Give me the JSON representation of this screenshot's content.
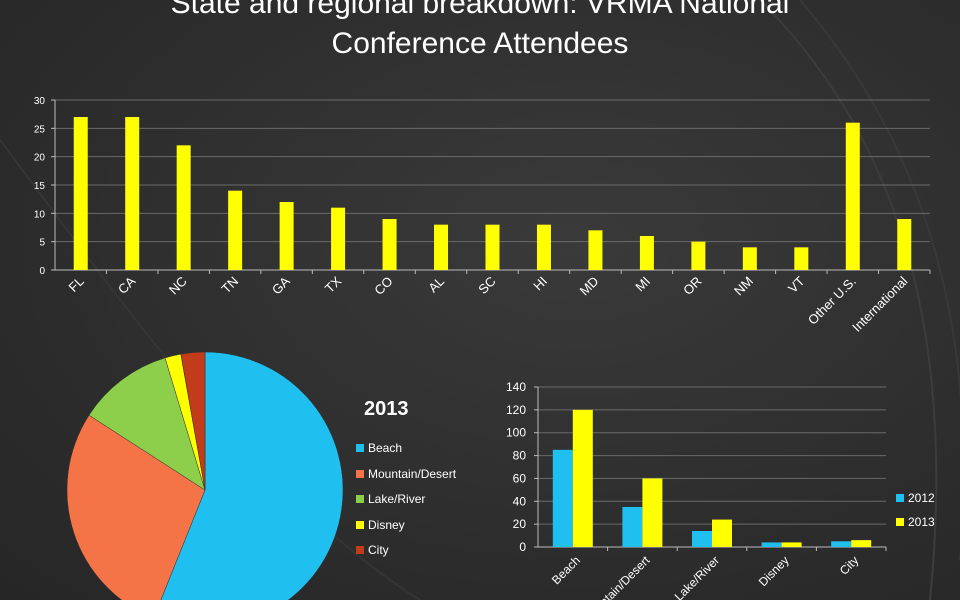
{
  "page": {
    "title_lines": [
      "State and regional breakdown: VRMA National",
      "Conference Attendees"
    ]
  },
  "colors": {
    "background": "#2f2f2f",
    "yellow": "#ffff00",
    "blue": "#1fbfef",
    "orange": "#f47447",
    "green": "#8dcf4b",
    "red": "#c23b1a"
  },
  "chart_data": [
    {
      "type": "bar",
      "categories": [
        "FL",
        "CA",
        "NC",
        "TN",
        "GA",
        "TX",
        "CO",
        "AL",
        "SC",
        "HI",
        "MD",
        "MI",
        "OR",
        "NM",
        "VT",
        "Other U.S.",
        "International"
      ],
      "values": [
        27,
        27,
        22,
        14,
        12,
        11,
        9,
        8,
        8,
        8,
        7,
        6,
        5,
        4,
        4,
        26,
        9
      ],
      "title": "",
      "xlabel": "",
      "ylabel": "",
      "ylim": [
        0,
        30
      ],
      "yticks": [
        0,
        5,
        10,
        15,
        20,
        25,
        30
      ],
      "grid": true,
      "bar_color": "#ffff00"
    },
    {
      "type": "pie",
      "title": "2013",
      "labels": [
        "Beach",
        "Mountain/Desert",
        "Lake/River",
        "Disney",
        "City"
      ],
      "values": [
        120,
        60,
        24,
        4,
        6
      ],
      "colors": [
        "#1fbfef",
        "#f47447",
        "#8dcf4b",
        "#ffff00",
        "#c23b1a"
      ],
      "legend": "right"
    },
    {
      "type": "bar",
      "categories": [
        "Beach",
        "Mountain/Desert",
        "Lake/River",
        "Disney",
        "City"
      ],
      "series": [
        {
          "name": "2012",
          "values": [
            85,
            35,
            14,
            4,
            5
          ],
          "color": "#1fbfef"
        },
        {
          "name": "2013",
          "values": [
            120,
            60,
            24,
            4,
            6
          ],
          "color": "#ffff00"
        }
      ],
      "title": "",
      "xlabel": "",
      "ylabel": "",
      "ylim": [
        0,
        140
      ],
      "yticks": [
        0,
        20,
        40,
        60,
        80,
        100,
        120,
        140
      ],
      "grid": true,
      "legend": "right"
    }
  ]
}
